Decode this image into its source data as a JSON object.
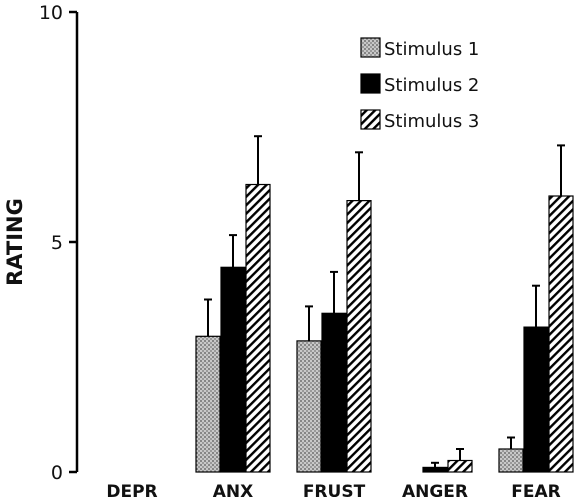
{
  "chart_data": {
    "type": "bar",
    "title": "",
    "xlabel": "",
    "ylabel": "RATING",
    "ylim": [
      0,
      10
    ],
    "yticks": [
      0,
      5,
      10
    ],
    "categories": [
      "DEPR",
      "ANX",
      "FRUST",
      "ANGER",
      "FEAR"
    ],
    "series": [
      {
        "name": "Stimulus 1",
        "pattern": "dotted",
        "values": [
          0,
          2.95,
          2.85,
          0.0,
          0.5
        ],
        "errors": [
          0,
          0.8,
          0.75,
          0,
          0.25
        ]
      },
      {
        "name": "Stimulus 2",
        "pattern": "solid",
        "values": [
          0,
          4.45,
          3.45,
          0.1,
          3.15
        ],
        "errors": [
          0,
          0.7,
          0.9,
          0.1,
          0.9
        ]
      },
      {
        "name": "Stimulus 3",
        "pattern": "hatched",
        "values": [
          0,
          6.25,
          5.9,
          0.25,
          6.0
        ],
        "errors": [
          0,
          1.05,
          1.05,
          0.25,
          1.1
        ]
      }
    ],
    "legend_position": "top-right",
    "grid": false,
    "colors": {
      "bar_stroke": "#000000",
      "solid_fill": "#000000",
      "pattern_bg": "#ffffff"
    }
  }
}
